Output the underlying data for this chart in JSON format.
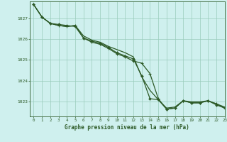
{
  "title": "Graphe pression niveau de la mer (hPa)",
  "background_color": "#cff0ee",
  "grid_color": "#99ccbb",
  "line_color": "#2d5a27",
  "xlim": [
    -0.5,
    23
  ],
  "ylim": [
    1022.3,
    1027.8
  ],
  "yticks": [
    1023,
    1024,
    1025,
    1026,
    1027
  ],
  "xticks": [
    0,
    1,
    2,
    3,
    4,
    5,
    6,
    7,
    8,
    9,
    10,
    11,
    12,
    13,
    14,
    15,
    16,
    17,
    18,
    19,
    20,
    21,
    22,
    23
  ],
  "series1": [
    1027.65,
    1027.05,
    1026.75,
    1026.65,
    1026.6,
    1026.65,
    1026.15,
    1025.95,
    1025.85,
    1025.65,
    1025.5,
    1025.35,
    1025.15,
    1024.2,
    1023.55,
    1023.1,
    1022.7,
    1022.75,
    1023.05,
    1023.0,
    1023.0,
    1023.05,
    1022.9,
    1022.75
  ],
  "series2": [
    1027.65,
    1027.05,
    1026.75,
    1026.7,
    1026.65,
    1026.6,
    1026.05,
    1025.9,
    1025.8,
    1025.6,
    1025.35,
    1025.2,
    1025.05,
    1024.25,
    1023.15,
    1023.1,
    1022.65,
    1022.7,
    1023.05,
    1022.95,
    1022.95,
    1023.05,
    1022.85,
    1022.7
  ],
  "series3": [
    1027.65,
    1027.05,
    1026.75,
    1026.65,
    1026.6,
    1026.65,
    1026.05,
    1025.85,
    1025.75,
    1025.55,
    1025.3,
    1025.15,
    1024.95,
    1024.85,
    1024.35,
    1023.15,
    1022.65,
    1022.7,
    1023.05,
    1022.95,
    1022.95,
    1023.05,
    1022.9,
    1022.7
  ]
}
